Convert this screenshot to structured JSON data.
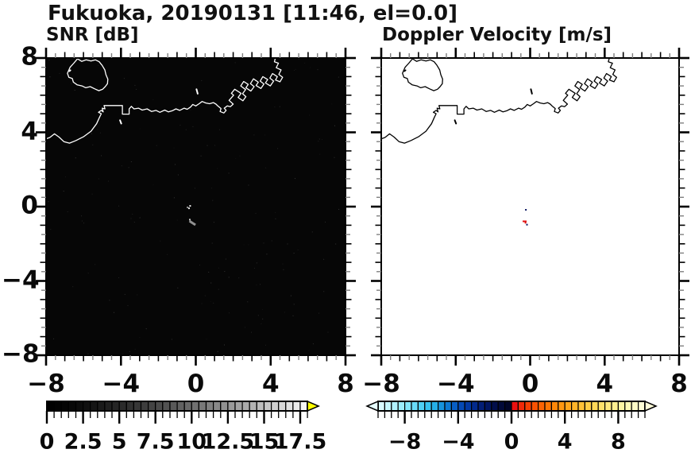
{
  "title": "Fukuoka, 20190131 [11:46, el=0.0]",
  "panels": [
    {
      "id": "snr",
      "title": "SNR [dB]",
      "bg": "#060606",
      "coast_color": "#ffffff",
      "axis_color": "#000000"
    },
    {
      "id": "velocity",
      "title": "Doppler Velocity [m/s]",
      "bg": "#ffffff",
      "coast_color": "#000000",
      "axis_color": "#000000"
    }
  ],
  "axes": {
    "xlim": [
      -8,
      8
    ],
    "ylim": [
      -8,
      8
    ],
    "minor_step": 0.5,
    "major_step": 4,
    "x_tick_values": [
      -8,
      -4,
      0,
      4,
      8
    ],
    "x_tick_labels": [
      "−8",
      "−4",
      "0",
      "4",
      "8"
    ],
    "y_tick_values": [
      8,
      4,
      0,
      -4,
      -8
    ],
    "y_tick_labels": [
      "8",
      "4",
      "0",
      "−4",
      "−8"
    ],
    "half_tick_color": "#808080",
    "major_tick_color": "#000000"
  },
  "chart_data": [
    {
      "type": "heatmap",
      "title": "SNR [dB]",
      "xlim": [
        -8,
        8
      ],
      "ylim": [
        -8,
        8
      ],
      "background_value": "no echo (black)",
      "colorbar_range": [
        0,
        18
      ],
      "colorbar_tick_labels": [
        "0",
        "2.5",
        "5",
        "7.5",
        "10",
        "12.5",
        "15",
        "17.5"
      ],
      "points": [
        {
          "x": -0.36,
          "y": -0.09,
          "snr_db": 16,
          "color": "#e2e2e2",
          "w": 2,
          "h": 2
        },
        {
          "x": -0.3,
          "y": 0.04,
          "snr_db": 17,
          "color": "#f0f0f0",
          "w": 2,
          "h": 2
        },
        {
          "x": -0.44,
          "y": -0.04,
          "snr_db": 10,
          "color": "#9a9a9a",
          "w": 2,
          "h": 2
        },
        {
          "x": -0.32,
          "y": -0.7,
          "snr_db": 13,
          "color": "#c8c8c8",
          "w": 2,
          "h": 2
        },
        {
          "x": -0.18,
          "y": -0.88,
          "snr_db": 9,
          "color": "#909090",
          "w": 9,
          "h": 3,
          "rot": 33
        }
      ]
    },
    {
      "type": "heatmap",
      "title": "Doppler Velocity [m/s]",
      "xlim": [
        -8,
        8
      ],
      "ylim": [
        -8,
        8
      ],
      "background_value": "no echo (white)",
      "colorbar_range": [
        -10,
        10
      ],
      "colorbar_tick_labels": [
        "−8",
        "−4",
        "0",
        "4",
        "8"
      ],
      "points": [
        {
          "x": -0.23,
          "y": -0.17,
          "vel_ms": -0.7,
          "color": "#0a1560",
          "w": 2,
          "h": 2
        },
        {
          "x": -0.3,
          "y": -0.79,
          "vel_ms": 0.3,
          "color": "#e01010",
          "w": 5,
          "h": 2
        },
        {
          "x": -0.25,
          "y": -0.87,
          "vel_ms": 0.3,
          "color": "#e01010",
          "w": 2,
          "h": 2
        },
        {
          "x": -0.17,
          "y": -0.97,
          "vel_ms": -0.7,
          "color": "#0a1560",
          "w": 2,
          "h": 2
        }
      ]
    }
  ],
  "colorbars": {
    "snr": {
      "min": 0,
      "max": 18,
      "cell": 0.5,
      "major_values": [
        0,
        2.5,
        5,
        7.5,
        10,
        12.5,
        15,
        17.5
      ],
      "tick_labels": [
        "0",
        "2.5",
        "5",
        "7.5",
        "10",
        "12.5",
        "15",
        "17.5"
      ],
      "overflow_color": "#ffff00",
      "colors": [
        "#000000",
        "#020202",
        "#040404",
        "#080808",
        "#0c0c0c",
        "#101010",
        "#151515",
        "#1a1a1a",
        "#1f1f1f",
        "#252525",
        "#2b2b2b",
        "#313131",
        "#373737",
        "#3d3d3d",
        "#444444",
        "#4b4b4b",
        "#525252",
        "#595959",
        "#616161",
        "#686868",
        "#707070",
        "#787878",
        "#808080",
        "#888888",
        "#919191",
        "#999999",
        "#a2a2a2",
        "#aaaaaa",
        "#b3b3b3",
        "#bdbdbd",
        "#c6c6c6",
        "#cfcfcf",
        "#d8d8d8",
        "#e2e2e2",
        "#ebebeb",
        "#f5f5f5"
      ]
    },
    "velocity": {
      "min": -10,
      "max": 10,
      "cell": 0.5,
      "major_values": [
        -8,
        -4,
        0,
        4,
        8
      ],
      "tick_labels": [
        "−8",
        "−4",
        "0",
        "4",
        "8"
      ],
      "underflow_color": "#e6feff",
      "overflow_color": "#fffdd8",
      "colors": [
        "#d8fbff",
        "#c5f7fe",
        "#b1f2fd",
        "#9bedfc",
        "#83e6fa",
        "#69dcf8",
        "#4fd0f4",
        "#37c2ee",
        "#25afe7",
        "#1793dd",
        "#0d78d1",
        "#085ec4",
        "#0549b5",
        "#0338a2",
        "#022a8d",
        "#021e76",
        "#011560",
        "#010e4b",
        "#010938",
        "#010527",
        "#ea1010",
        "#f02a08",
        "#f43f04",
        "#f85202",
        "#fb6402",
        "#fd7604",
        "#fe8708",
        "#ff9710",
        "#ffa61b",
        "#ffb428",
        "#ffc136",
        "#ffcd46",
        "#ffd857",
        "#ffe16a",
        "#ffe97d",
        "#fff090",
        "#fff5a3",
        "#fff9b5",
        "#fffbc6",
        "#fffdd5"
      ]
    }
  },
  "coastline": {
    "main": [
      [
        -8.15,
        3.6
      ],
      [
        -7.8,
        3.72
      ],
      [
        -7.55,
        3.92
      ],
      [
        -7.3,
        3.74
      ],
      [
        -7.05,
        3.5
      ],
      [
        -6.75,
        3.42
      ],
      [
        -6.4,
        3.56
      ],
      [
        -6.0,
        3.76
      ],
      [
        -5.6,
        4.06
      ],
      [
        -5.3,
        4.46
      ],
      [
        -5.15,
        4.8
      ],
      [
        -5.05,
        5.0
      ],
      [
        -5.2,
        5.08
      ],
      [
        -5.05,
        5.18
      ],
      [
        -4.95,
        5.1
      ],
      [
        -5.0,
        5.3
      ],
      [
        -4.85,
        5.26
      ],
      [
        -4.9,
        5.44
      ],
      [
        -4.72,
        5.44
      ],
      [
        -3.92,
        5.44
      ],
      [
        -3.92,
        4.98
      ],
      [
        -3.56,
        4.98
      ],
      [
        -3.56,
        5.26
      ],
      [
        -3.44,
        5.4
      ],
      [
        -3.3,
        5.26
      ],
      [
        -3.06,
        5.3
      ],
      [
        -2.86,
        5.2
      ],
      [
        -2.6,
        5.26
      ],
      [
        -2.36,
        5.12
      ],
      [
        -2.12,
        5.18
      ],
      [
        -1.92,
        5.08
      ],
      [
        -1.66,
        5.2
      ],
      [
        -1.46,
        5.1
      ],
      [
        -1.26,
        5.16
      ],
      [
        -1.06,
        5.26
      ],
      [
        -0.86,
        5.18
      ],
      [
        -0.62,
        5.3
      ],
      [
        -0.46,
        5.24
      ],
      [
        -0.28,
        5.36
      ],
      [
        -0.16,
        5.5
      ],
      [
        0.0,
        5.42
      ],
      [
        0.18,
        5.54
      ],
      [
        0.34,
        5.66
      ],
      [
        0.54,
        5.58
      ],
      [
        0.74,
        5.54
      ],
      [
        0.94,
        5.6
      ],
      [
        1.08,
        5.52
      ],
      [
        1.2,
        5.4
      ],
      [
        1.35,
        5.28
      ],
      [
        1.3,
        5.12
      ],
      [
        1.5,
        5.04
      ],
      [
        1.62,
        5.18
      ],
      [
        1.52,
        5.3
      ],
      [
        1.68,
        5.42
      ],
      [
        1.85,
        5.38
      ],
      [
        2.0,
        5.52
      ],
      [
        1.78,
        5.72
      ],
      [
        2.02,
        6.0
      ],
      [
        1.9,
        6.1
      ],
      [
        2.08,
        6.32
      ],
      [
        2.42,
        6.1
      ],
      [
        2.26,
        5.88
      ],
      [
        2.52,
        5.7
      ],
      [
        2.68,
        5.92
      ],
      [
        2.5,
        6.08
      ],
      [
        2.66,
        6.3
      ],
      [
        2.4,
        6.5
      ],
      [
        2.56,
        6.74
      ],
      [
        2.8,
        6.58
      ],
      [
        2.68,
        6.4
      ],
      [
        2.94,
        6.22
      ],
      [
        3.12,
        6.46
      ],
      [
        2.92,
        6.62
      ],
      [
        3.08,
        6.88
      ],
      [
        3.34,
        6.7
      ],
      [
        3.22,
        6.52
      ],
      [
        3.48,
        6.36
      ],
      [
        3.64,
        6.6
      ],
      [
        3.44,
        6.76
      ],
      [
        3.58,
        7.0
      ],
      [
        3.84,
        6.84
      ],
      [
        3.72,
        6.66
      ],
      [
        3.98,
        6.5
      ],
      [
        4.16,
        6.76
      ],
      [
        3.96,
        6.92
      ],
      [
        4.1,
        7.16
      ],
      [
        4.36,
        7.0
      ],
      [
        4.26,
        6.82
      ],
      [
        4.5,
        6.72
      ],
      [
        4.64,
        6.96
      ],
      [
        4.44,
        7.12
      ],
      [
        4.56,
        7.36
      ],
      [
        4.3,
        7.48
      ],
      [
        4.42,
        7.72
      ],
      [
        4.2,
        7.8
      ],
      [
        4.28,
        8.1
      ]
    ],
    "island": [
      [
        -6.32,
        7.96
      ],
      [
        -6.52,
        7.72
      ],
      [
        -6.72,
        7.5
      ],
      [
        -6.86,
        7.18
      ],
      [
        -6.78,
        6.96
      ],
      [
        -6.6,
        6.9
      ],
      [
        -6.54,
        6.7
      ],
      [
        -6.34,
        6.56
      ],
      [
        -6.08,
        6.5
      ],
      [
        -5.88,
        6.4
      ],
      [
        -5.64,
        6.46
      ],
      [
        -5.4,
        6.34
      ],
      [
        -5.18,
        6.24
      ],
      [
        -4.98,
        6.32
      ],
      [
        -4.84,
        6.46
      ],
      [
        -4.72,
        6.62
      ],
      [
        -4.7,
        6.86
      ],
      [
        -4.8,
        7.1
      ],
      [
        -4.86,
        7.36
      ],
      [
        -5.0,
        7.6
      ],
      [
        -5.16,
        7.8
      ],
      [
        -5.36,
        7.9
      ],
      [
        -5.6,
        7.84
      ],
      [
        -5.86,
        7.9
      ],
      [
        -6.1,
        7.82
      ],
      [
        -6.32,
        7.96
      ]
    ],
    "marks": [
      [
        [
          -6.75,
          7.3
        ],
        [
          -6.7,
          7.34
        ]
      ],
      [
        [
          -4.05,
          4.65
        ],
        [
          -3.98,
          4.47
        ]
      ],
      [
        [
          0.04,
          6.32
        ],
        [
          0.1,
          6.08
        ]
      ]
    ]
  }
}
